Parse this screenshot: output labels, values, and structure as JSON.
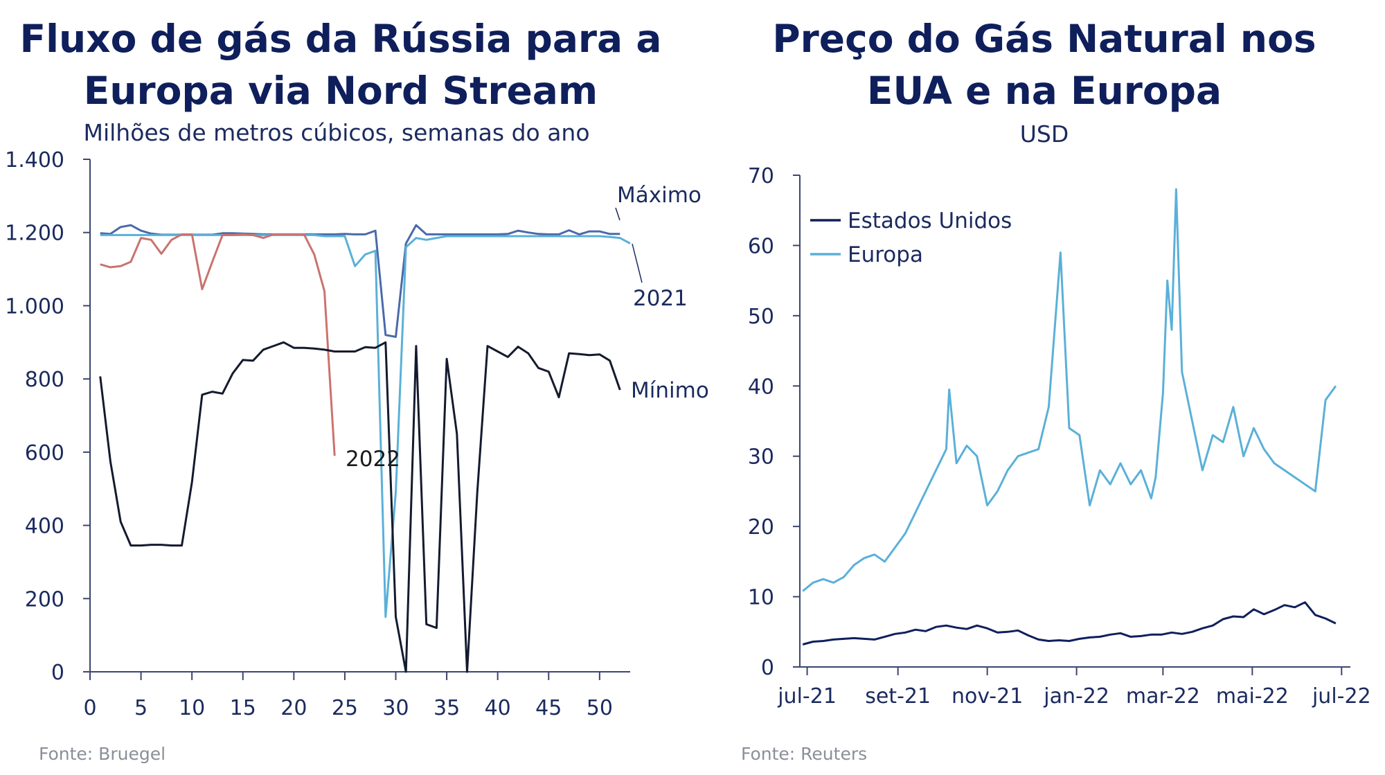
{
  "left": {
    "title_line1": "Fluxo de gás da Rússia para a",
    "title_line2": "Europa via Nord Stream",
    "subtitle": "Milhões de metros cúbicos, semanas do ano",
    "source": "Fonte:  Bruegel",
    "chart_data": {
      "type": "line",
      "xlim": [
        0,
        53
      ],
      "ylim": [
        0,
        1400
      ],
      "y_ticks": [
        0,
        200,
        400,
        600,
        800,
        1000,
        1200,
        1400
      ],
      "y_tick_labels": [
        "0",
        "200",
        "400",
        "600",
        "800",
        "1.000",
        "1.200",
        "1.400"
      ],
      "x_ticks": [
        0,
        5,
        10,
        15,
        20,
        25,
        30,
        35,
        40,
        45,
        50
      ],
      "x_tick_labels": [
        "0",
        "5",
        "10",
        "15",
        "20",
        "25",
        "30",
        "35",
        "40",
        "45",
        "50"
      ],
      "grid": false,
      "series": [
        {
          "name": "Máximo",
          "color": "#4a6aa8",
          "x": [
            1,
            2,
            3,
            4,
            5,
            6,
            7,
            8,
            9,
            10,
            11,
            12,
            13,
            14,
            15,
            16,
            17,
            18,
            19,
            20,
            21,
            22,
            23,
            24,
            25,
            26,
            27,
            28,
            29,
            30,
            31,
            32,
            33,
            34,
            35,
            36,
            37,
            38,
            39,
            40,
            41,
            42,
            43,
            44,
            45,
            46,
            47,
            48,
            49,
            50,
            51,
            52
          ],
          "y": [
            1198,
            1196,
            1215,
            1220,
            1205,
            1197,
            1194,
            1194,
            1194,
            1194,
            1194,
            1194,
            1198,
            1198,
            1197,
            1196,
            1195,
            1195,
            1195,
            1195,
            1195,
            1195,
            1195,
            1195,
            1196,
            1195,
            1195,
            1205,
            920,
            915,
            1170,
            1220,
            1195,
            1195,
            1195,
            1195,
            1195,
            1195,
            1195,
            1195,
            1196,
            1205,
            1200,
            1196,
            1195,
            1195,
            1206,
            1195,
            1203,
            1203,
            1196,
            1196
          ]
        },
        {
          "name": "2021",
          "color": "#5ab0d8",
          "x": [
            1,
            2,
            3,
            4,
            5,
            6,
            7,
            8,
            9,
            10,
            11,
            12,
            13,
            14,
            15,
            16,
            17,
            18,
            19,
            20,
            21,
            22,
            23,
            24,
            25,
            26,
            27,
            28,
            29,
            30,
            31,
            32,
            33,
            34,
            35,
            36,
            37,
            38,
            39,
            40,
            41,
            42,
            43,
            44,
            45,
            46,
            47,
            48,
            49,
            50,
            51,
            52,
            53
          ],
          "y": [
            1193,
            1193,
            1193,
            1193,
            1193,
            1193,
            1193,
            1193,
            1193,
            1193,
            1193,
            1193,
            1193,
            1193,
            1193,
            1193,
            1193,
            1193,
            1193,
            1193,
            1193,
            1193,
            1190,
            1190,
            1190,
            1108,
            1140,
            1150,
            150,
            490,
            1160,
            1185,
            1180,
            1185,
            1190,
            1190,
            1190,
            1190,
            1190,
            1190,
            1190,
            1190,
            1190,
            1190,
            1190,
            1190,
            1190,
            1190,
            1190,
            1190,
            1188,
            1185,
            1170
          ]
        },
        {
          "name": "2022",
          "color": "#c9736e",
          "x": [
            1,
            2,
            3,
            4,
            5,
            6,
            7,
            8,
            9,
            10,
            11,
            12,
            13,
            14,
            15,
            16,
            17,
            18,
            19,
            20,
            21,
            22,
            23,
            24
          ],
          "y": [
            1113,
            1105,
            1108,
            1120,
            1185,
            1180,
            1142,
            1180,
            1195,
            1195,
            1045,
            1120,
            1193,
            1193,
            1195,
            1193,
            1185,
            1195,
            1195,
            1195,
            1195,
            1140,
            1040,
            590
          ]
        },
        {
          "name": "Mínimo",
          "color": "#141a2e",
          "x": [
            1,
            2,
            3,
            4,
            5,
            6,
            7,
            8,
            9,
            10,
            11,
            12,
            13,
            14,
            15,
            16,
            17,
            18,
            19,
            20,
            21,
            22,
            23,
            24,
            25,
            26,
            27,
            28,
            29,
            30,
            31,
            32,
            33,
            34,
            35,
            36,
            37,
            38,
            39,
            40,
            41,
            42,
            43,
            44,
            45,
            46,
            47,
            48,
            49,
            50,
            51,
            52
          ],
          "y": [
            807,
            575,
            410,
            345,
            345,
            347,
            347,
            345,
            345,
            518,
            757,
            765,
            760,
            815,
            852,
            850,
            880,
            890,
            900,
            885,
            885,
            883,
            880,
            875,
            875,
            875,
            887,
            885,
            900,
            150,
            0,
            890,
            130,
            120,
            855,
            650,
            0,
            490,
            890,
            875,
            860,
            888,
            870,
            830,
            820,
            750,
            870,
            868,
            865,
            867,
            850,
            770
          ]
        }
      ],
      "annotations": [
        "Máximo",
        "2021",
        "Mínimo",
        "2022"
      ]
    }
  },
  "right": {
    "title_line1": "Preço do Gás Natural nos",
    "title_line2": "EUA e na Europa",
    "subtitle": "USD",
    "source": "Fonte:  Reuters",
    "chart_data": {
      "type": "line",
      "x_type": "date",
      "xlim": [
        "2021-06-26",
        "2022-07-07"
      ],
      "ylim": [
        0,
        70
      ],
      "y_ticks": [
        0,
        10,
        20,
        30,
        40,
        50,
        60,
        70
      ],
      "x_tick_labels": [
        "jul-21",
        "set-21",
        "nov-21",
        "jan-22",
        "mar-22",
        "mai-22",
        "jul-22"
      ],
      "x_tick_dates": [
        "2021-07-01",
        "2021-09-01",
        "2021-11-01",
        "2022-01-01",
        "2022-03-01",
        "2022-05-01",
        "2022-07-01"
      ],
      "grid": false,
      "legend": "top-left",
      "series": [
        {
          "name": "Estados Unidos",
          "color": "#0f1f5c",
          "x": [
            "2021-06-28",
            "2021-07-05",
            "2021-07-12",
            "2021-07-19",
            "2021-07-26",
            "2021-08-02",
            "2021-08-09",
            "2021-08-16",
            "2021-08-23",
            "2021-08-30",
            "2021-09-06",
            "2021-09-13",
            "2021-09-20",
            "2021-09-27",
            "2021-10-04",
            "2021-10-11",
            "2021-10-18",
            "2021-10-25",
            "2021-11-01",
            "2021-11-08",
            "2021-11-15",
            "2021-11-22",
            "2021-11-29",
            "2021-12-06",
            "2021-12-13",
            "2021-12-20",
            "2021-12-27",
            "2022-01-03",
            "2022-01-10",
            "2022-01-17",
            "2022-01-24",
            "2022-01-31",
            "2022-02-07",
            "2022-02-14",
            "2022-02-21",
            "2022-02-28",
            "2022-03-07",
            "2022-03-14",
            "2022-03-21",
            "2022-03-28",
            "2022-04-04",
            "2022-04-11",
            "2022-04-18",
            "2022-04-25",
            "2022-05-02",
            "2022-05-09",
            "2022-05-16",
            "2022-05-23",
            "2022-05-30",
            "2022-06-06",
            "2022-06-13",
            "2022-06-20",
            "2022-06-27"
          ],
          "y": [
            3.2,
            3.6,
            3.7,
            3.9,
            4.0,
            4.1,
            4.0,
            3.9,
            4.3,
            4.7,
            4.9,
            5.3,
            5.1,
            5.7,
            5.9,
            5.6,
            5.4,
            5.9,
            5.5,
            4.9,
            5.0,
            5.2,
            4.5,
            3.9,
            3.7,
            3.8,
            3.7,
            4.0,
            4.2,
            4.3,
            4.6,
            4.8,
            4.3,
            4.4,
            4.6,
            4.6,
            4.9,
            4.7,
            5.0,
            5.5,
            5.9,
            6.8,
            7.2,
            7.1,
            8.2,
            7.5,
            8.1,
            8.8,
            8.5,
            9.2,
            7.4,
            6.9,
            6.2
          ]
        },
        {
          "name": "Europa",
          "color": "#5ab0d8",
          "x": [
            "2021-06-28",
            "2021-07-05",
            "2021-07-12",
            "2021-07-19",
            "2021-07-26",
            "2021-08-02",
            "2021-08-09",
            "2021-08-16",
            "2021-08-23",
            "2021-08-30",
            "2021-09-06",
            "2021-09-13",
            "2021-09-20",
            "2021-09-27",
            "2021-10-04",
            "2021-10-06",
            "2021-10-11",
            "2021-10-18",
            "2021-10-25",
            "2021-11-01",
            "2021-11-08",
            "2021-11-15",
            "2021-11-22",
            "2021-11-29",
            "2021-12-06",
            "2021-12-13",
            "2021-12-21",
            "2021-12-27",
            "2022-01-03",
            "2022-01-10",
            "2022-01-17",
            "2022-01-24",
            "2022-01-31",
            "2022-02-07",
            "2022-02-14",
            "2022-02-21",
            "2022-02-24",
            "2022-03-01",
            "2022-03-04",
            "2022-03-07",
            "2022-03-10",
            "2022-03-14",
            "2022-03-21",
            "2022-03-28",
            "2022-04-04",
            "2022-04-11",
            "2022-04-18",
            "2022-04-25",
            "2022-05-02",
            "2022-05-09",
            "2022-05-16",
            "2022-05-23",
            "2022-05-30",
            "2022-06-06",
            "2022-06-13",
            "2022-06-20",
            "2022-06-27"
          ],
          "y": [
            10.8,
            12.0,
            12.5,
            12.0,
            12.8,
            14.5,
            15.5,
            16.0,
            15.0,
            17.0,
            19.0,
            22.0,
            25.0,
            28.0,
            31.0,
            39.5,
            29.0,
            31.5,
            30.0,
            23.0,
            25.0,
            28.0,
            30.0,
            30.5,
            31.0,
            37.0,
            59.0,
            34.0,
            33.0,
            23.0,
            28.0,
            26.0,
            29.0,
            26.0,
            28.0,
            24.0,
            27.0,
            39.0,
            55.0,
            48.0,
            68.0,
            42.0,
            35.0,
            28.0,
            33.0,
            32.0,
            37.0,
            30.0,
            34.0,
            31.0,
            29.0,
            28.0,
            27.0,
            26.0,
            25.0,
            38.0,
            40.0
          ]
        }
      ]
    }
  }
}
